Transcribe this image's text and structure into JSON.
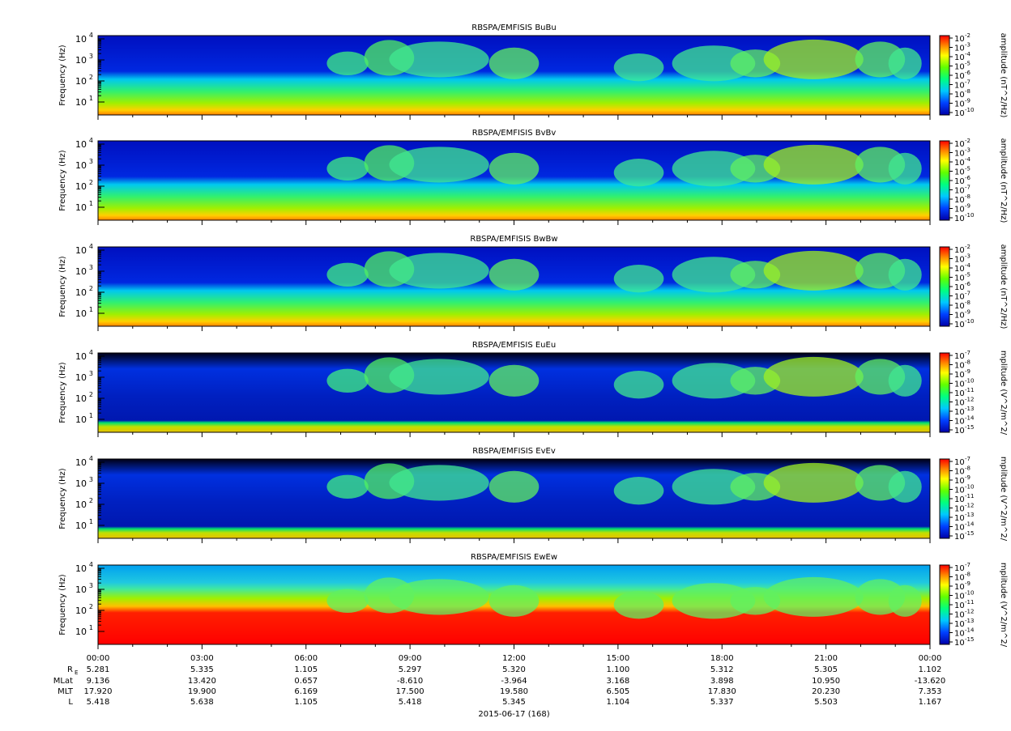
{
  "chart_data": {
    "type": "heatmap",
    "panels": [
      {
        "id": "bubu",
        "title": "RBSPA/EMFISIS  BuBu",
        "ylabel": "Frequency (Hz)",
        "cbar_label": "amplitude (nT^2/Hz)",
        "cbar_ticks": [
          "-2",
          "-3",
          "-4",
          "-5",
          "-6",
          "-7",
          "-8",
          "-9",
          "-10"
        ],
        "y_ticks": [
          "1",
          "2",
          "3",
          "4"
        ]
      },
      {
        "id": "bvbv",
        "title": "RBSPA/EMFISIS  BvBv",
        "ylabel": "Frequency (Hz)",
        "cbar_label": "amplitude (nT^2/Hz)",
        "cbar_ticks": [
          "-2",
          "-3",
          "-4",
          "-5",
          "-6",
          "-7",
          "-8",
          "-9",
          "-10"
        ],
        "y_ticks": [
          "1",
          "2",
          "3",
          "4"
        ]
      },
      {
        "id": "bwbw",
        "title": "RBSPA/EMFISIS  BwBw",
        "ylabel": "Frequency (Hz)",
        "cbar_label": "amplitude (nT^2/Hz)",
        "cbar_ticks": [
          "-2",
          "-3",
          "-4",
          "-5",
          "-6",
          "-7",
          "-8",
          "-9",
          "-10"
        ],
        "y_ticks": [
          "1",
          "2",
          "3",
          "4"
        ]
      },
      {
        "id": "eueu",
        "title": "RBSPA/EMFISIS  EuEu",
        "ylabel": "Frequency (Hz)",
        "cbar_label": "mplitude (V^2/m^2/",
        "cbar_ticks": [
          "-7",
          "-8",
          "-9",
          "-10",
          "-11",
          "-12",
          "-13",
          "-14",
          "-15"
        ],
        "y_ticks": [
          "1",
          "2",
          "3",
          "4"
        ]
      },
      {
        "id": "evev",
        "title": "RBSPA/EMFISIS  EvEv",
        "ylabel": "Frequency (Hz)",
        "cbar_label": "mplitude (V^2/m^2/",
        "cbar_ticks": [
          "-7",
          "-8",
          "-9",
          "-10",
          "-11",
          "-12",
          "-13",
          "-14",
          "-15"
        ],
        "y_ticks": [
          "1",
          "2",
          "3",
          "4"
        ]
      },
      {
        "id": "ewew",
        "title": "RBSPA/EMFISIS  EwEw",
        "ylabel": "Frequency (Hz)",
        "cbar_label": "mplitude (V^2/m^2/",
        "cbar_ticks": [
          "-7",
          "-8",
          "-9",
          "-10",
          "-11",
          "-12",
          "-13",
          "-14",
          "-15"
        ],
        "y_ticks": [
          "1",
          "2",
          "3",
          "4"
        ]
      }
    ],
    "tick_base": "10",
    "x_ticks": [
      "00:00",
      "03:00",
      "06:00",
      "09:00",
      "12:00",
      "15:00",
      "18:00",
      "21:00",
      "00:00"
    ],
    "ephemeris": {
      "labels": [
        "R",
        "MLat",
        "MLT",
        "L"
      ],
      "re_subscript": "E",
      "rows": [
        [
          "5.281",
          "5.335",
          "1.105",
          "5.297",
          "5.320",
          "1.100",
          "5.312",
          "5.305",
          "1.102"
        ],
        [
          "9.136",
          "13.420",
          "0.657",
          "-8.610",
          "-3.964",
          "3.168",
          "3.898",
          "10.950",
          "-13.620"
        ],
        [
          "17.920",
          "19.900",
          "6.169",
          "17.500",
          "19.580",
          "6.505",
          "17.830",
          "20.230",
          "7.353"
        ],
        [
          "5.418",
          "5.638",
          "1.105",
          "5.418",
          "5.345",
          "1.104",
          "5.337",
          "5.503",
          "1.167"
        ]
      ]
    },
    "date_label": "2015-06-17 (168)"
  }
}
